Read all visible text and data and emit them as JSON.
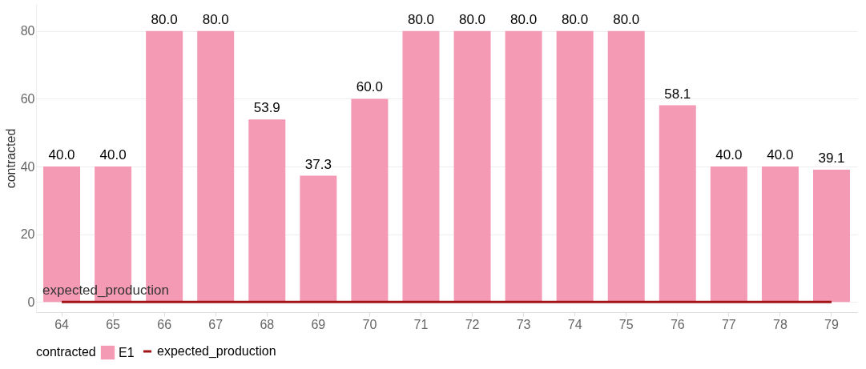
{
  "chart_data": {
    "type": "bar",
    "ylabel": "contracted",
    "legend_title": "contracted",
    "categories": [
      "64",
      "65",
      "66",
      "67",
      "68",
      "69",
      "70",
      "71",
      "72",
      "73",
      "74",
      "75",
      "76",
      "77",
      "78",
      "79"
    ],
    "series": [
      {
        "name": "E1",
        "color": "#f49ab5",
        "values": [
          40.0,
          40.0,
          80.0,
          80.0,
          53.9,
          37.3,
          60.0,
          80.0,
          80.0,
          80.0,
          80.0,
          80.0,
          58.1,
          40.0,
          40.0,
          39.1
        ],
        "value_labels": [
          "40.0",
          "40.0",
          "80.0",
          "80.0",
          "53.9",
          "37.3",
          "60.0",
          "80.0",
          "80.0",
          "80.0",
          "80.0",
          "80.0",
          "58.1",
          "40.0",
          "40.0",
          "39.1"
        ]
      },
      {
        "name": "expected_production",
        "type": "line",
        "color": "#a31515",
        "values": [
          0,
          0,
          0,
          0,
          0,
          0,
          0,
          0,
          0,
          0,
          0,
          0,
          0,
          0,
          0,
          0
        ]
      }
    ],
    "annotations": [
      {
        "text": "expected_production",
        "x": "64",
        "y": 0
      }
    ],
    "ylim": [
      -3,
      88
    ],
    "yticks": [
      0,
      20,
      40,
      60,
      80
    ],
    "grid": "y",
    "legend": "bottom left"
  }
}
